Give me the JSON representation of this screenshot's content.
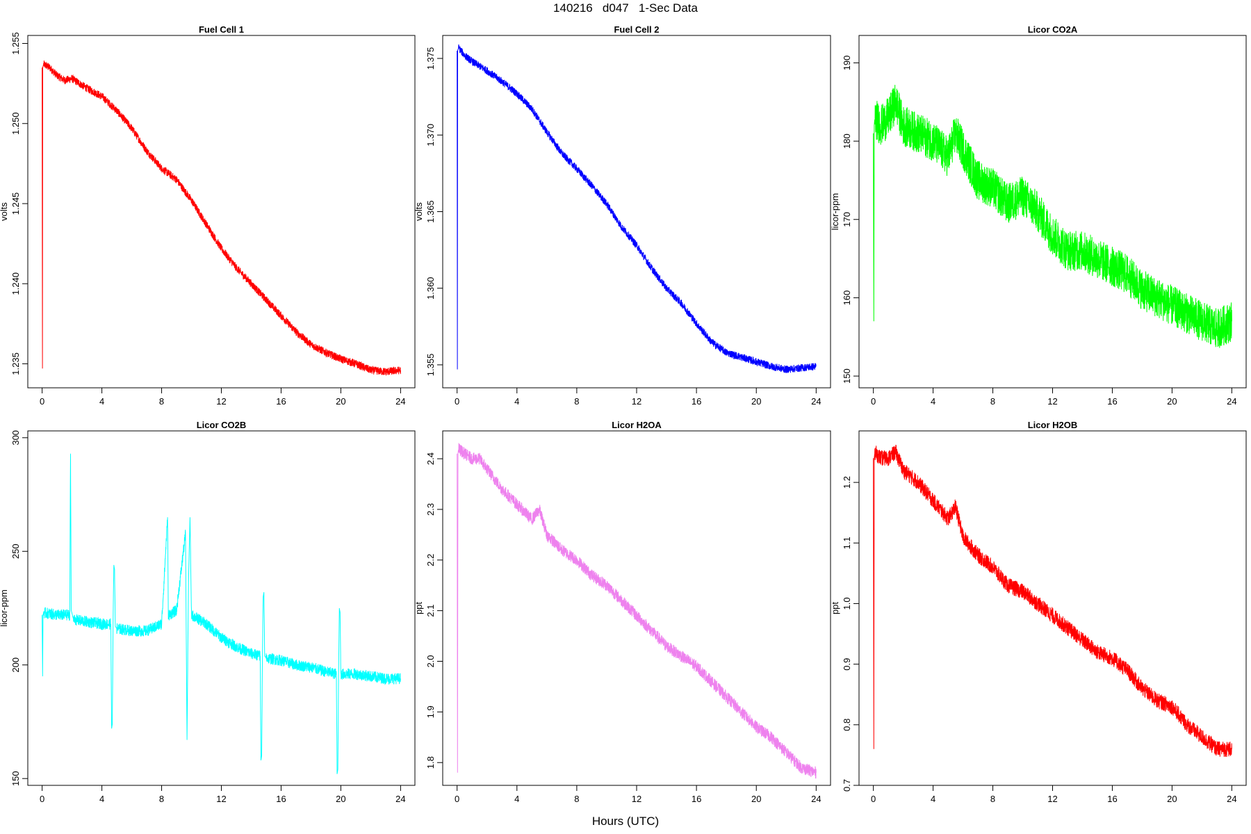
{
  "figure": {
    "title": "140216   d047   1-Sec Data",
    "xlabel": "Hours (UTC)"
  },
  "chart_data": [
    {
      "type": "line",
      "title": "Fuel Cell 1",
      "xlabel": "",
      "ylabel": "volts",
      "color": "#ff0000",
      "xlim": [
        0,
        24
      ],
      "ylim": [
        1.2335,
        1.2555
      ],
      "xticks": [
        "0",
        "4",
        "8",
        "12",
        "16",
        "20",
        "24"
      ],
      "yticks": [
        "1.235",
        "1.240",
        "1.245",
        "1.250",
        "1.255"
      ],
      "noise": 0.00025,
      "series": [
        {
          "x": [
            0,
            0.02,
            0.04,
            0.1,
            0.5,
            1,
            1.5,
            2,
            3,
            4,
            5,
            6,
            7,
            8,
            9,
            10,
            11,
            12,
            13,
            14,
            15,
            16,
            17,
            18,
            19,
            20,
            21,
            22,
            23,
            24
          ],
          "y": [
            1.2535,
            1.2347,
            1.2535,
            1.2537,
            1.2535,
            1.253,
            1.2527,
            1.2528,
            1.2522,
            1.2517,
            1.2508,
            1.2497,
            1.2483,
            1.2472,
            1.2465,
            1.2452,
            1.2437,
            1.2422,
            1.241,
            1.24,
            1.239,
            1.238,
            1.237,
            1.2362,
            1.2357,
            1.2353,
            1.235,
            1.2346,
            1.2345,
            1.2346
          ]
        }
      ]
    },
    {
      "type": "line",
      "title": "Fuel Cell 2",
      "xlabel": "",
      "ylabel": "volts",
      "color": "#0000ff",
      "xlim": [
        0,
        24
      ],
      "ylim": [
        1.3535,
        1.3765
      ],
      "xticks": [
        "0",
        "4",
        "8",
        "12",
        "16",
        "20",
        "24"
      ],
      "yticks": [
        "1.355",
        "1.360",
        "1.365",
        "1.370",
        "1.375"
      ],
      "noise": 0.00025,
      "series": [
        {
          "x": [
            0,
            0.02,
            0.04,
            0.1,
            0.5,
            1,
            2,
            3,
            4,
            5,
            6,
            7,
            8,
            9,
            10,
            11,
            12,
            13,
            14,
            15,
            16,
            17,
            18,
            19,
            20,
            21,
            22,
            23,
            24
          ],
          "y": [
            1.3755,
            1.3547,
            1.3755,
            1.3757,
            1.3752,
            1.3748,
            1.3742,
            1.3735,
            1.3727,
            1.3717,
            1.3702,
            1.3688,
            1.3678,
            1.3667,
            1.3655,
            1.364,
            1.3628,
            1.3613,
            1.36,
            1.359,
            1.3577,
            1.3565,
            1.3558,
            1.3555,
            1.3552,
            1.3549,
            1.3547,
            1.3548,
            1.3549
          ]
        }
      ]
    },
    {
      "type": "line",
      "title": "Licor CO2A",
      "xlabel": "",
      "ylabel": "licor-ppm",
      "color": "#00ff00",
      "xlim": [
        0,
        24
      ],
      "ylim": [
        148.5,
        193.5
      ],
      "xticks": [
        "0",
        "4",
        "8",
        "12",
        "16",
        "20",
        "24"
      ],
      "yticks": [
        "150",
        "160",
        "170",
        "180",
        "190"
      ],
      "noise": 2.6,
      "series": [
        {
          "x": [
            0,
            0.03,
            0.06,
            0.1,
            0.5,
            1,
            1.5,
            2,
            3,
            4,
            5,
            5.5,
            6,
            7,
            8,
            9,
            10,
            11,
            12,
            13,
            14,
            15,
            16,
            17,
            18,
            19,
            20,
            21,
            22,
            23,
            24
          ],
          "y": [
            181,
            157,
            182,
            183,
            182,
            183,
            185,
            182,
            181,
            180,
            178,
            181,
            179,
            175,
            174,
            172,
            173,
            171,
            168,
            166,
            166,
            165,
            164,
            163,
            161,
            160,
            159,
            158,
            157,
            156,
            157
          ]
        }
      ]
    },
    {
      "type": "line",
      "title": "Licor CO2B",
      "xlabel": "",
      "ylabel": "licor-ppm",
      "color": "#00ffff",
      "xlim": [
        0,
        24
      ],
      "ylim": [
        147,
        303
      ],
      "xticks": [
        "0",
        "4",
        "8",
        "12",
        "16",
        "20",
        "24"
      ],
      "yticks": [
        "150",
        "200",
        "250",
        "300"
      ],
      "noise": 2.5,
      "series": [
        {
          "x": [
            0,
            0.03,
            0.06,
            0.1,
            1,
            1.85,
            1.9,
            1.95,
            2.1,
            3,
            4,
            4.6,
            4.65,
            4.7,
            4.75,
            4.8,
            4.85,
            4.9,
            5,
            6,
            7,
            8,
            8.4,
            8.45,
            8.5,
            9,
            9.6,
            9.7,
            9.8,
            9.9,
            10,
            11,
            12,
            13,
            14,
            14.6,
            14.65,
            14.7,
            14.75,
            14.8,
            14.85,
            14.9,
            15,
            16,
            17,
            18,
            19,
            19.7,
            19.75,
            19.8,
            19.85,
            19.9,
            19.95,
            20,
            21,
            22,
            23,
            24
          ],
          "y": [
            222,
            195,
            222,
            223,
            222,
            222,
            293,
            224,
            220,
            219,
            218,
            218,
            172,
            174,
            218,
            244,
            242,
            217,
            216,
            215,
            215,
            218,
            265,
            220,
            222,
            224,
            258,
            167,
            236,
            265,
            222,
            218,
            212,
            208,
            205,
            204,
            158,
            160,
            205,
            230,
            232,
            204,
            203,
            202,
            200,
            199,
            197,
            196,
            152,
            154,
            196,
            225,
            223,
            196,
            196,
            195,
            194,
            194
          ]
        }
      ]
    },
    {
      "type": "line",
      "title": "Licor H2OA",
      "xlabel": "",
      "ylabel": "ppt",
      "color": "#ee82ee",
      "xlim": [
        0,
        24
      ],
      "ylim": [
        1.755,
        2.455
      ],
      "xticks": [
        "0",
        "4",
        "8",
        "12",
        "16",
        "20",
        "24"
      ],
      "yticks": [
        "1.8",
        "1.9",
        "2.0",
        "2.1",
        "2.2",
        "2.3",
        "2.4"
      ],
      "noise": 0.012,
      "series": [
        {
          "x": [
            0,
            0.03,
            0.06,
            0.1,
            0.5,
            1,
            1.5,
            2,
            3,
            4,
            5,
            5.5,
            6,
            7,
            8,
            9,
            10,
            11,
            12,
            13,
            14,
            15,
            16,
            17,
            18,
            19,
            20,
            21,
            22,
            23,
            24
          ],
          "y": [
            2.41,
            1.78,
            2.41,
            2.42,
            2.41,
            2.4,
            2.4,
            2.38,
            2.34,
            2.31,
            2.28,
            2.3,
            2.25,
            2.22,
            2.2,
            2.17,
            2.15,
            2.12,
            2.09,
            2.06,
            2.03,
            2.01,
            1.99,
            1.96,
            1.93,
            1.9,
            1.87,
            1.85,
            1.82,
            1.79,
            1.78
          ]
        }
      ]
    },
    {
      "type": "line",
      "title": "Licor H2OB",
      "xlabel": "",
      "ylabel": "ppt",
      "color": "#ff0000",
      "xlim": [
        0,
        24
      ],
      "ylim": [
        0.7,
        1.285
      ],
      "xticks": [
        "0",
        "4",
        "8",
        "12",
        "16",
        "20",
        "24"
      ],
      "yticks": [
        "0.7",
        "0.8",
        "0.9",
        "1.0",
        "1.1",
        "1.2"
      ],
      "noise": 0.013,
      "series": [
        {
          "x": [
            0,
            0.03,
            0.06,
            0.1,
            0.5,
            1,
            1.5,
            2,
            3,
            4,
            5,
            5.5,
            6,
            7,
            8,
            9,
            10,
            11,
            12,
            13,
            14,
            15,
            16,
            17,
            18,
            19,
            20,
            21,
            22,
            23,
            24
          ],
          "y": [
            1.24,
            0.76,
            1.24,
            1.25,
            1.24,
            1.24,
            1.25,
            1.22,
            1.2,
            1.17,
            1.14,
            1.16,
            1.11,
            1.08,
            1.06,
            1.03,
            1.02,
            1.0,
            0.98,
            0.96,
            0.94,
            0.92,
            0.91,
            0.89,
            0.86,
            0.84,
            0.83,
            0.8,
            0.78,
            0.76,
            0.76
          ]
        }
      ]
    }
  ]
}
